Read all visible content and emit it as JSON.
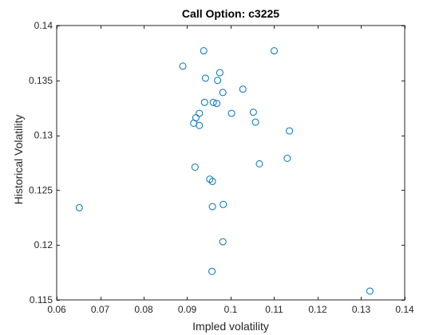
{
  "colors": {
    "marker": "#0072BD",
    "axis": "#262626",
    "background": "#ffffff"
  },
  "chart_data": {
    "type": "scatter",
    "title": "Call Option: c3225",
    "xlabel": "Impled volatility",
    "ylabel": "Historical Volatility",
    "xlim": [
      0.06,
      0.14
    ],
    "ylim": [
      0.115,
      0.14
    ],
    "xticks": [
      0.06,
      0.07,
      0.08,
      0.09,
      0.1,
      0.11,
      0.12,
      0.13,
      0.14
    ],
    "xtick_labels": [
      "0.06",
      "0.07",
      "0.08",
      "0.09",
      "0.1",
      "0.11",
      "0.12",
      "0.13",
      "0.14"
    ],
    "yticks": [
      0.115,
      0.12,
      0.125,
      0.13,
      0.135,
      0.14
    ],
    "ytick_labels": [
      "0.115",
      "0.12",
      "0.125",
      "0.13",
      "0.135",
      "0.14"
    ],
    "grid": false,
    "marker": "open-circle",
    "points": [
      {
        "x": 0.0652,
        "y": 0.1234
      },
      {
        "x": 0.089,
        "y": 0.1363
      },
      {
        "x": 0.0938,
        "y": 0.1377
      },
      {
        "x": 0.0942,
        "y": 0.1352
      },
      {
        "x": 0.0975,
        "y": 0.1357
      },
      {
        "x": 0.11,
        "y": 0.1377
      },
      {
        "x": 0.097,
        "y": 0.135
      },
      {
        "x": 0.1028,
        "y": 0.1342
      },
      {
        "x": 0.0982,
        "y": 0.1339
      },
      {
        "x": 0.094,
        "y": 0.133
      },
      {
        "x": 0.096,
        "y": 0.133
      },
      {
        "x": 0.0968,
        "y": 0.1329
      },
      {
        "x": 0.0928,
        "y": 0.132
      },
      {
        "x": 0.092,
        "y": 0.1316
      },
      {
        "x": 0.0915,
        "y": 0.1311
      },
      {
        "x": 0.0928,
        "y": 0.1309
      },
      {
        "x": 0.1002,
        "y": 0.132
      },
      {
        "x": 0.1052,
        "y": 0.1321
      },
      {
        "x": 0.1057,
        "y": 0.1312
      },
      {
        "x": 0.1135,
        "y": 0.1304
      },
      {
        "x": 0.113,
        "y": 0.1279
      },
      {
        "x": 0.1066,
        "y": 0.1274
      },
      {
        "x": 0.0918,
        "y": 0.1271
      },
      {
        "x": 0.0952,
        "y": 0.126
      },
      {
        "x": 0.0958,
        "y": 0.1258
      },
      {
        "x": 0.0983,
        "y": 0.1237
      },
      {
        "x": 0.0958,
        "y": 0.1235
      },
      {
        "x": 0.0982,
        "y": 0.1203
      },
      {
        "x": 0.0957,
        "y": 0.1176
      },
      {
        "x": 0.132,
        "y": 0.1158
      }
    ]
  }
}
